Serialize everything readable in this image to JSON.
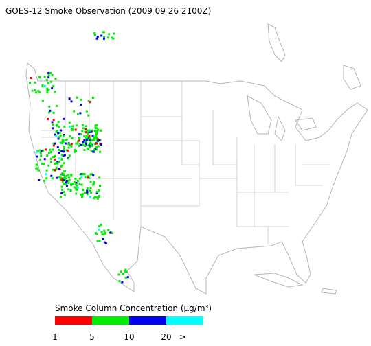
{
  "header": {
    "title": "GOES-12 Smoke Observation (2009 09 26  2100Z)"
  },
  "legend": {
    "title": "Smoke Column Concentration (μg/m³)",
    "labels": [
      "1",
      "5",
      "10",
      "20",
      ">"
    ],
    "colors": [
      "#ff0000",
      "#00ee00",
      "#0000ee",
      "#00ffff"
    ]
  }
}
